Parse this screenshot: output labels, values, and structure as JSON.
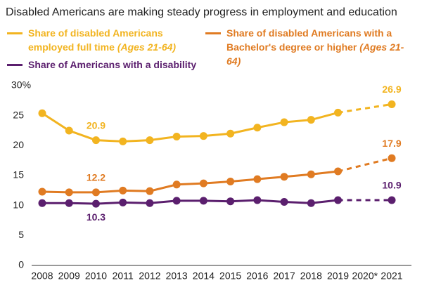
{
  "chart_data": {
    "type": "line",
    "title": "Disabled Americans are making steady progress in employment and education",
    "categories": [
      "2008",
      "2009",
      "2010",
      "2011",
      "2012",
      "2013",
      "2014",
      "2015",
      "2016",
      "2017",
      "2018",
      "2019",
      "2020*",
      "2021"
    ],
    "series": [
      {
        "name": "Share of disabled Americans employed full time",
        "age_note": "(Ages 21-64)",
        "color": "#f2b420",
        "values": [
          25.4,
          22.5,
          20.9,
          20.7,
          20.9,
          21.5,
          21.6,
          22.0,
          23.0,
          23.9,
          24.3,
          25.5,
          null,
          26.9
        ],
        "value_labels": [
          null,
          null,
          "20.9",
          null,
          null,
          null,
          null,
          null,
          null,
          null,
          null,
          null,
          null,
          "26.9"
        ]
      },
      {
        "name": "Share of disabled Americans with a Bachelor's degree or higher",
        "age_note": "(Ages 21-64)",
        "color": "#e07b22",
        "values": [
          12.3,
          12.2,
          12.2,
          12.5,
          12.4,
          13.5,
          13.7,
          14.0,
          14.4,
          14.8,
          15.2,
          15.7,
          null,
          17.9
        ],
        "value_labels": [
          null,
          null,
          "12.2",
          null,
          null,
          null,
          null,
          null,
          null,
          null,
          null,
          null,
          null,
          "17.9"
        ]
      },
      {
        "name": "Share of Americans with a disability",
        "color": "#5b1f6e",
        "values": [
          10.4,
          10.4,
          10.3,
          10.5,
          10.4,
          10.8,
          10.8,
          10.7,
          10.9,
          10.6,
          10.4,
          10.9,
          null,
          10.9
        ],
        "value_labels": [
          null,
          null,
          "10.3",
          null,
          null,
          null,
          null,
          null,
          null,
          null,
          null,
          null,
          null,
          "10.9"
        ]
      }
    ],
    "ylim": [
      0,
      30
    ],
    "yticks": [
      0,
      5,
      10,
      15,
      20,
      {
        "value": 30,
        "label": "30%"
      },
      25
    ],
    "grid": false
  }
}
